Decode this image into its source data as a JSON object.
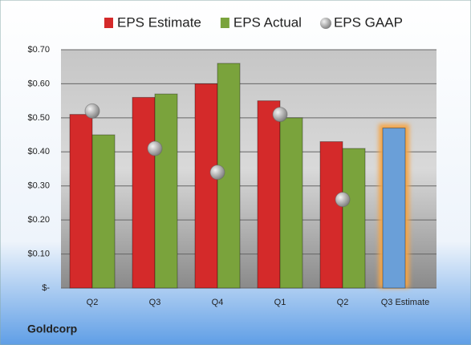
{
  "chart_data": {
    "type": "bar",
    "footer": "Goldcorp",
    "categories": [
      "Q2",
      "Q3",
      "Q4",
      "Q1",
      "Q2",
      "Q3 Estimate"
    ],
    "series": [
      {
        "name": "EPS Estimate",
        "type": "bar",
        "color": "#d42a2a",
        "colors": [
          "#d42a2a",
          "#d42a2a",
          "#d42a2a",
          "#d42a2a",
          "#d42a2a",
          "#6a9fd8"
        ],
        "values": [
          0.51,
          0.56,
          0.6,
          0.55,
          0.43,
          0.47
        ]
      },
      {
        "name": "EPS Actual",
        "type": "bar",
        "color": "#7aa33c",
        "values": [
          0.45,
          0.57,
          0.66,
          0.5,
          0.41,
          null
        ]
      },
      {
        "name": "EPS GAAP",
        "type": "scatter",
        "color": "#a8a8a8",
        "values": [
          0.52,
          0.41,
          0.34,
          0.51,
          0.26,
          null
        ]
      }
    ],
    "ylim": [
      0,
      0.7
    ],
    "yticks": [
      {
        "value": 0,
        "label": "$-"
      },
      {
        "value": 0.1,
        "label": "$0.10"
      },
      {
        "value": 0.2,
        "label": "$0.20"
      },
      {
        "value": 0.3,
        "label": "$0.30"
      },
      {
        "value": 0.4,
        "label": "$0.40"
      },
      {
        "value": 0.5,
        "label": "$0.50"
      },
      {
        "value": 0.6,
        "label": "$0.60"
      },
      {
        "value": 0.7,
        "label": "$0.70"
      }
    ],
    "grid": true
  }
}
